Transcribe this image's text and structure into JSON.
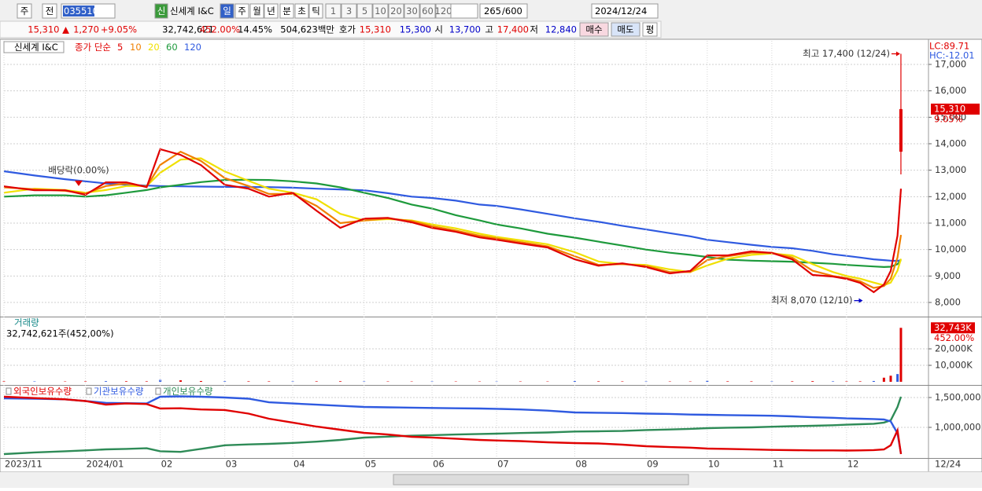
{
  "toolbar": {
    "period_type": "주",
    "market": "전",
    "code": "035510",
    "badge": "신",
    "name": "신세계 I&C",
    "intervals": [
      "일",
      "주",
      "월",
      "년",
      "분",
      "초",
      "틱"
    ],
    "ticks": [
      "1",
      "3",
      "5",
      "10",
      "20",
      "30",
      "60",
      "120"
    ],
    "count": "265",
    "max_count": "/600",
    "date": "2024/12/24"
  },
  "quote": {
    "price": "15,310 ▲",
    "change": "1,270",
    "change_pct": "+9.05%",
    "volume": "32,742,621",
    "volume_ratio": "452.00%",
    "turnover": "14.45%",
    "amount": "504,623백만",
    "ask_label": "호가",
    "ask": "15,310",
    "bid": "15,300",
    "open_label": "시",
    "open": "13,700",
    "high_label": "고",
    "high": "17,400",
    "low_label": "저",
    "low": "12,840",
    "buy": "매수",
    "sell": "매도",
    "avg": "평"
  },
  "chart_data": [
    {
      "type": "line",
      "title": "신세계 I&C",
      "subtitle": "종가 단순",
      "indicators": [
        "LC:89.71",
        "HC:-12.01"
      ],
      "x": [
        0,
        9,
        18,
        24,
        30,
        36,
        42,
        46,
        52,
        58,
        65,
        72,
        78,
        85,
        92,
        99,
        106,
        113,
        120,
        126,
        133,
        140,
        145,
        152,
        160,
        168,
        175,
        182,
        189,
        196,
        202,
        207,
        213,
        220,
        226,
        232,
        238,
        244,
        248,
        252,
        256,
        259,
        261,
        263,
        264
      ],
      "series": [
        {
          "name": "5",
          "color": "#e00000",
          "values": [
            12390,
            12240,
            12240,
            12070,
            12540,
            12540,
            12360,
            13790,
            13580,
            13190,
            12450,
            12300,
            12000,
            12150,
            11470,
            10820,
            11170,
            11200,
            11030,
            10820,
            10670,
            10460,
            10370,
            10230,
            10080,
            9630,
            9390,
            9480,
            9340,
            9100,
            9190,
            9780,
            9780,
            9930,
            9870,
            9630,
            9040,
            8980,
            8890,
            8740,
            8390,
            8680,
            9190,
            10520,
            12300
          ]
        },
        {
          "name": "10",
          "color": "#f08000",
          "values": [
            12350,
            12280,
            12220,
            12120,
            12400,
            12500,
            12380,
            13200,
            13700,
            13350,
            12700,
            12400,
            12100,
            12100,
            11650,
            11000,
            11100,
            11180,
            11080,
            10880,
            10720,
            10520,
            10420,
            10280,
            10120,
            9750,
            9420,
            9450,
            9380,
            9150,
            9150,
            9600,
            9750,
            9880,
            9880,
            9700,
            9200,
            9000,
            8920,
            8800,
            8550,
            8620,
            8900,
            9700,
            10550
          ]
        },
        {
          "name": "20",
          "color": "#f0e000",
          "values": [
            12150,
            12300,
            12250,
            12150,
            12250,
            12400,
            12400,
            12900,
            13400,
            13450,
            12950,
            12600,
            12300,
            12150,
            11900,
            11350,
            11100,
            11150,
            11100,
            10950,
            10800,
            10600,
            10480,
            10350,
            10200,
            9900,
            9550,
            9450,
            9420,
            9250,
            9150,
            9400,
            9650,
            9800,
            9850,
            9780,
            9450,
            9150,
            9000,
            8900,
            8750,
            8650,
            8750,
            9200,
            9650
          ]
        },
        {
          "name": "60",
          "color": "#1e9a3c",
          "values": [
            12000,
            12050,
            12050,
            12000,
            12050,
            12150,
            12250,
            12350,
            12450,
            12550,
            12630,
            12640,
            12630,
            12580,
            12500,
            12350,
            12150,
            11950,
            11700,
            11550,
            11300,
            11100,
            10950,
            10800,
            10600,
            10450,
            10300,
            10150,
            10000,
            9880,
            9800,
            9720,
            9620,
            9580,
            9560,
            9540,
            9500,
            9460,
            9420,
            9390,
            9360,
            9340,
            9350,
            9450,
            9600
          ]
        },
        {
          "name": "120",
          "color": "#2f5ae0",
          "values": [
            12960,
            12800,
            12660,
            12580,
            12500,
            12450,
            12420,
            12400,
            12390,
            12380,
            12370,
            12365,
            12360,
            12340,
            12300,
            12270,
            12240,
            12130,
            12000,
            11950,
            11850,
            11700,
            11650,
            11520,
            11350,
            11180,
            11050,
            10900,
            10760,
            10620,
            10500,
            10370,
            10280,
            10180,
            10100,
            10050,
            9950,
            9820,
            9760,
            9700,
            9630,
            9600,
            9580,
            9570,
            9600
          ]
        }
      ],
      "candle": {
        "x": 264,
        "open": 13700,
        "high": 17400,
        "low": 12840,
        "close": 15310,
        "color": "#e00000"
      },
      "last_price": {
        "value": 15310,
        "label": "15,310"
      },
      "change_pct": "9.05%",
      "annotations": [
        {
          "text": "최고 17,400 (12/24)",
          "x": 264,
          "y": 17400,
          "color": "#e00000"
        },
        {
          "text": "최저 8,070 (12/10)",
          "x": 253,
          "y": 8070,
          "color": "#0000c8"
        },
        {
          "text": "배당락(0.00%)",
          "x": 22,
          "y": 12400,
          "color": "#e00000"
        }
      ],
      "ylim": [
        7495,
        17890
      ],
      "yticks": [
        {
          "value": 8000,
          "label": "8,000"
        },
        {
          "value": 9000,
          "label": "9,000"
        },
        {
          "value": 10000,
          "label": "10,000"
        },
        {
          "value": 11000,
          "label": "11,000"
        },
        {
          "value": 12000,
          "label": "12,000"
        },
        {
          "value": 13000,
          "label": "13,000"
        },
        {
          "value": 14000,
          "label": "14,000"
        },
        {
          "value": 15000,
          "label": "15,000"
        },
        {
          "value": 16000,
          "label": "16,000"
        },
        {
          "value": 17000,
          "label": "17,000"
        }
      ],
      "grid": true
    },
    {
      "type": "bar",
      "title": "거래량",
      "subtitle": "32,742,621주(452,00%)",
      "color": "#e00000",
      "x": [
        0,
        9,
        18,
        24,
        30,
        36,
        42,
        46,
        52,
        58,
        65,
        72,
        78,
        85,
        92,
        99,
        106,
        113,
        120,
        126,
        133,
        140,
        145,
        152,
        160,
        168,
        175,
        182,
        189,
        196,
        202,
        207,
        213,
        220,
        226,
        232,
        238,
        244,
        248,
        252,
        256,
        259,
        261,
        263,
        264
      ],
      "values": [
        300,
        250,
        220,
        280,
        400,
        350,
        300,
        1200,
        900,
        500,
        350,
        300,
        280,
        260,
        300,
        350,
        250,
        220,
        200,
        230,
        210,
        200,
        190,
        220,
        200,
        450,
        300,
        250,
        240,
        220,
        210,
        600,
        300,
        280,
        250,
        300,
        400,
        280,
        260,
        300,
        500,
        2500,
        3700,
        4700,
        32743
      ],
      "last_volume": {
        "value": 32743,
        "label": "32,743K"
      },
      "volume_ratio": "452.00%",
      "ylim": [
        -1900,
        38600
      ],
      "yticks": [
        {
          "value": 10000,
          "label": "10,000K"
        },
        {
          "value": 20000,
          "label": "20,000K"
        }
      ],
      "grid": true
    },
    {
      "type": "line",
      "x": [
        0,
        9,
        18,
        24,
        30,
        36,
        42,
        46,
        52,
        58,
        65,
        72,
        78,
        85,
        92,
        99,
        106,
        113,
        120,
        126,
        133,
        140,
        145,
        152,
        160,
        168,
        175,
        182,
        189,
        196,
        202,
        207,
        213,
        220,
        226,
        232,
        238,
        244,
        248,
        252,
        256,
        259,
        261,
        263,
        264
      ],
      "series": [
        {
          "name": "외국인보유수량",
          "color": "#e00000",
          "values": [
            1513000,
            1490000,
            1470000,
            1440000,
            1382000,
            1400000,
            1390000,
            1316000,
            1320000,
            1300000,
            1290000,
            1230000,
            1145000,
            1080000,
            1013000,
            960000,
            908000,
            880000,
            842000,
            830000,
            810000,
            789000,
            780000,
            770000,
            750000,
            737000,
            730000,
            710000,
            684000,
            670000,
            660000,
            645000,
            640000,
            630000,
            622000,
            618000,
            615000,
            615000,
            612000,
            615000,
            620000,
            630000,
            700000,
            950000,
            553000
          ]
        },
        {
          "name": "기관보유수량",
          "color": "#2f5ae0",
          "values": [
            1487000,
            1480000,
            1470000,
            1440000,
            1410000,
            1405000,
            1400000,
            1513000,
            1520000,
            1513000,
            1500000,
            1480000,
            1420000,
            1400000,
            1380000,
            1360000,
            1342000,
            1335000,
            1330000,
            1325000,
            1320000,
            1315000,
            1310000,
            1300000,
            1280000,
            1250000,
            1245000,
            1240000,
            1230000,
            1225000,
            1215000,
            1211000,
            1205000,
            1200000,
            1195000,
            1184000,
            1170000,
            1160000,
            1150000,
            1145000,
            1140000,
            1132000,
            1100000,
            900000,
            560000
          ]
        },
        {
          "name": "개인보유수량",
          "color": "#2e8b57",
          "values": [
            553000,
            580000,
            600000,
            615000,
            632000,
            640000,
            650000,
            600000,
            590000,
            640000,
            700000,
            715000,
            724000,
            740000,
            760000,
            790000,
            829000,
            845000,
            860000,
            870000,
            880000,
            890000,
            895000,
            905000,
            915000,
            930000,
            934000,
            940000,
            955000,
            965000,
            975000,
            987000,
            995000,
            1000000,
            1010000,
            1020000,
            1026000,
            1035000,
            1045000,
            1053000,
            1060000,
            1080000,
            1118000,
            1342000,
            1513000
          ]
        }
      ],
      "ylim": [
        500000,
        1684000
      ],
      "yticks": [
        {
          "value": 1000000,
          "label": "1,000,000"
        },
        {
          "value": 1500000,
          "label": "1,500,000"
        }
      ],
      "grid": true,
      "xticks": [
        {
          "value": 0,
          "label": "2023/11"
        },
        {
          "value": 24,
          "label": "2024/01"
        },
        {
          "value": 46,
          "label": "02"
        },
        {
          "value": 65,
          "label": "03"
        },
        {
          "value": 85,
          "label": "04"
        },
        {
          "value": 106,
          "label": "05"
        },
        {
          "value": 126,
          "label": "06"
        },
        {
          "value": 145,
          "label": "07"
        },
        {
          "value": 168,
          "label": "08"
        },
        {
          "value": 189,
          "label": "09"
        },
        {
          "value": 207,
          "label": "10"
        },
        {
          "value": 226,
          "label": "11"
        },
        {
          "value": 248,
          "label": "12"
        }
      ],
      "cursor_label": "12/24"
    }
  ]
}
